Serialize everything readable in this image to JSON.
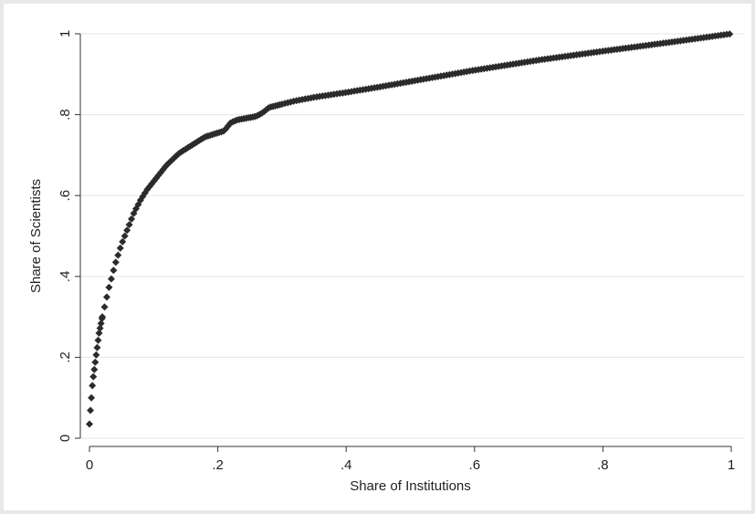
{
  "chart_data": {
    "type": "scatter",
    "title": "",
    "xlabel": "Share of Institutions",
    "ylabel": "Share of Scientists",
    "xlim": [
      0,
      1
    ],
    "ylim": [
      0,
      1
    ],
    "x_ticks": [
      {
        "value": 0,
        "label": "0"
      },
      {
        "value": 0.2,
        "label": ".2"
      },
      {
        "value": 0.4,
        "label": ".4"
      },
      {
        "value": 0.6,
        "label": ".6"
      },
      {
        "value": 0.8,
        "label": ".8"
      },
      {
        "value": 1,
        "label": "1"
      }
    ],
    "y_ticks": [
      {
        "value": 0,
        "label": "0"
      },
      {
        "value": 0.2,
        "label": ".2"
      },
      {
        "value": 0.4,
        "label": ".4"
      },
      {
        "value": 0.6,
        "label": ".6"
      },
      {
        "value": 0.8,
        "label": ".8"
      },
      {
        "value": 1,
        "label": "1"
      }
    ],
    "grid": "horizontal",
    "marker": "diamond",
    "marker_color": "#2b2b2b",
    "curve_anchors": [
      [
        0.0,
        0.035
      ],
      [
        0.002,
        0.08
      ],
      [
        0.005,
        0.14
      ],
      [
        0.01,
        0.2
      ],
      [
        0.015,
        0.26
      ],
      [
        0.02,
        0.3
      ],
      [
        0.03,
        0.37
      ],
      [
        0.04,
        0.43
      ],
      [
        0.05,
        0.48
      ],
      [
        0.06,
        0.52
      ],
      [
        0.07,
        0.56
      ],
      [
        0.08,
        0.59
      ],
      [
        0.09,
        0.615
      ],
      [
        0.1,
        0.635
      ],
      [
        0.11,
        0.655
      ],
      [
        0.12,
        0.675
      ],
      [
        0.13,
        0.69
      ],
      [
        0.14,
        0.705
      ],
      [
        0.15,
        0.715
      ],
      [
        0.16,
        0.725
      ],
      [
        0.17,
        0.735
      ],
      [
        0.18,
        0.745
      ],
      [
        0.19,
        0.75
      ],
      [
        0.2,
        0.755
      ],
      [
        0.21,
        0.76
      ],
      [
        0.22,
        0.78
      ],
      [
        0.23,
        0.787
      ],
      [
        0.24,
        0.79
      ],
      [
        0.25,
        0.793
      ],
      [
        0.26,
        0.796
      ],
      [
        0.27,
        0.805
      ],
      [
        0.28,
        0.818
      ],
      [
        0.3,
        0.826
      ],
      [
        0.32,
        0.834
      ],
      [
        0.35,
        0.843
      ],
      [
        0.4,
        0.855
      ],
      [
        0.45,
        0.868
      ],
      [
        0.5,
        0.882
      ],
      [
        0.6,
        0.91
      ],
      [
        0.7,
        0.935
      ],
      [
        0.8,
        0.957
      ],
      [
        0.9,
        0.978
      ],
      [
        1.0,
        1.0
      ]
    ]
  }
}
